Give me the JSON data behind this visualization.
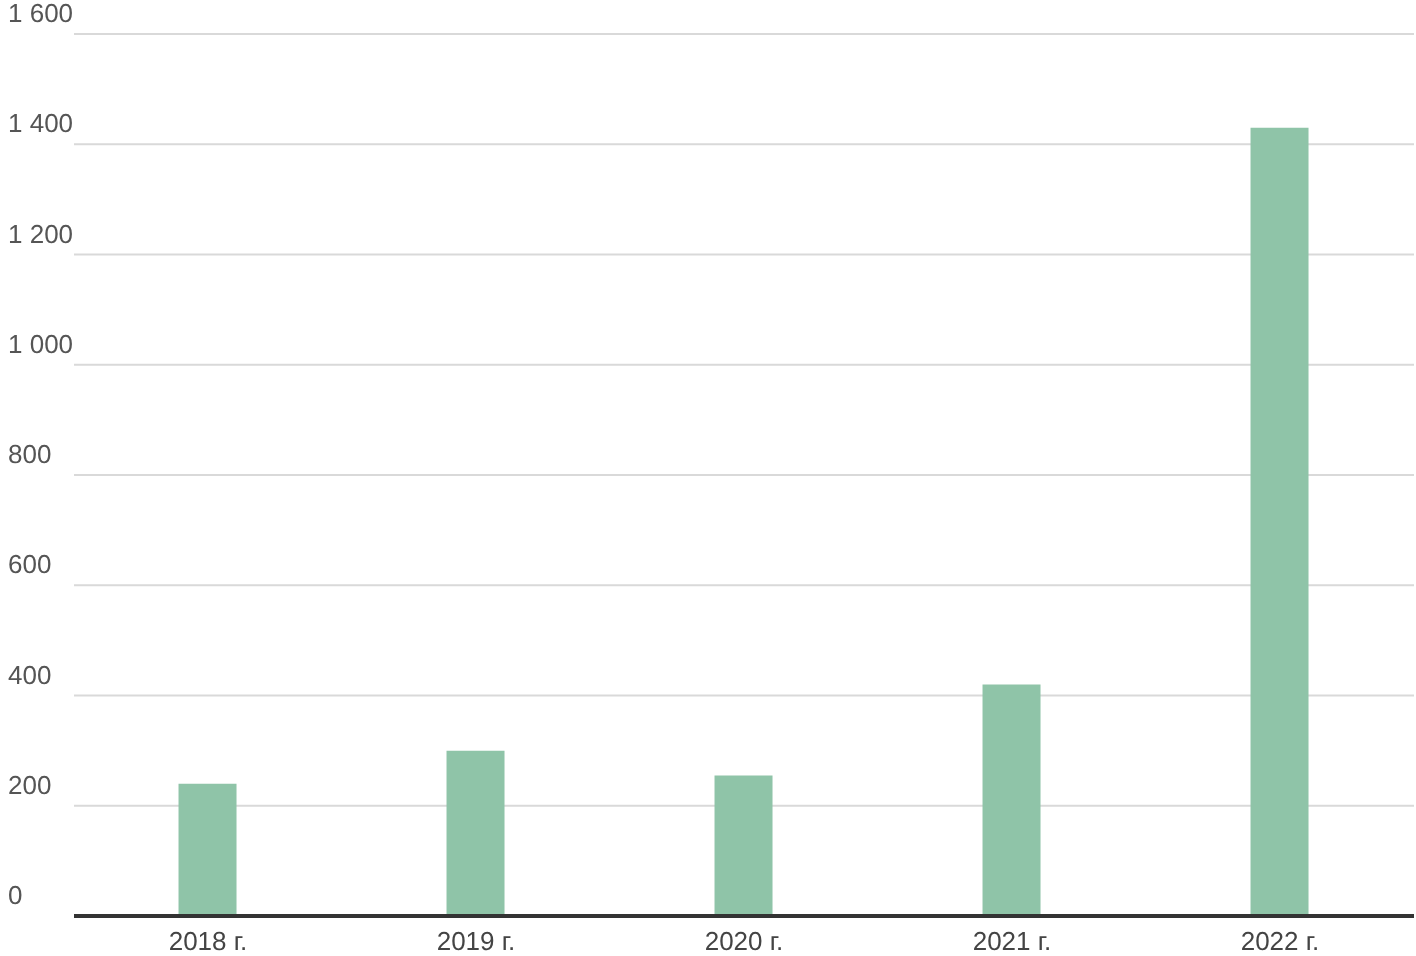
{
  "chart_data": {
    "type": "bar",
    "categories": [
      "2018 г.",
      "2019 г.",
      "2020 г.",
      "2021 г.",
      "2022 г."
    ],
    "values": [
      240,
      300,
      255,
      420,
      1430
    ],
    "color": "#8fc4a8",
    "ylim": [
      0,
      1600
    ],
    "yticks": [
      0,
      200,
      400,
      600,
      800,
      {
        "value": 1000,
        "label": "1 000"
      },
      {
        "value": 1200,
        "label": "1 200"
      },
      {
        "value": 1400,
        "label": "1 400"
      },
      {
        "value": 1600,
        "label": "1 600"
      }
    ],
    "grid": "y"
  }
}
